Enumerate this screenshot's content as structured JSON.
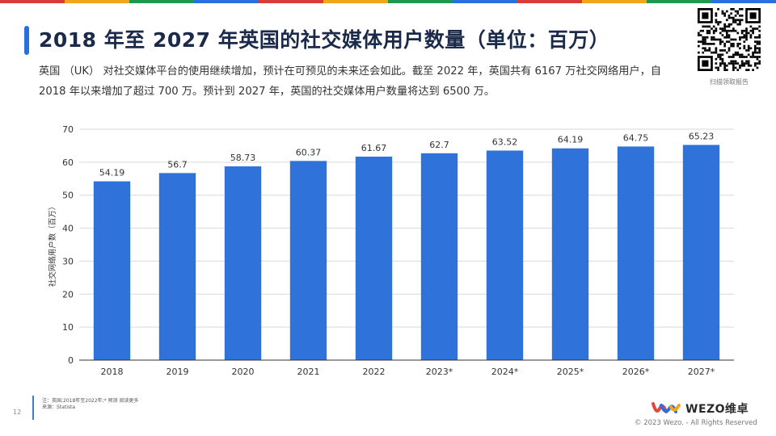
{
  "theme": {
    "bar_color": "#2f72d9",
    "title_accent": "#2a6fe0",
    "top_stripe": [
      "#d93b3b",
      "#f2a51b",
      "#1f9a4c",
      "#2a6fe0",
      "#d93b3b",
      "#f2a51b",
      "#1f9a4c",
      "#2a6fe0",
      "#d93b3b",
      "#f2a51b",
      "#1f9a4c",
      "#2a6fe0"
    ]
  },
  "title": "2018 年至 2027 年英国的社交媒体用户数量（单位：百万）",
  "description": "英国 （UK） 对社交媒体平台的使用继续增加，预计在可预见的未来还会如此。截至 2022 年，英国共有 6167 万社交网络用户，自 2018 年以来增加了超过 700 万。预计到 2027 年，英国的社交媒体用户数量将达到 6500 万。",
  "qr_caption": "扫描领取报告",
  "chart_data": {
    "type": "bar",
    "categories": [
      "2018",
      "2019",
      "2020",
      "2021",
      "2022",
      "2023*",
      "2024*",
      "2025*",
      "2026*",
      "2027*"
    ],
    "values": [
      54.19,
      56.7,
      58.73,
      60.37,
      61.67,
      62.7,
      63.52,
      64.19,
      64.75,
      65.23
    ],
    "value_labels": [
      "54.19",
      "56.7",
      "58.73",
      "60.37",
      "61.67",
      "62.7",
      "63.52",
      "64.19",
      "64.75",
      "65.23"
    ],
    "ylabel": "社交网络用户数（百万）",
    "ylim": [
      0,
      70
    ],
    "yticks": [
      0,
      10,
      20,
      30,
      40,
      50,
      60,
      70
    ],
    "grid": true
  },
  "footnote": {
    "note": "注：英国;2018年至2022年;* 预测 阅读更多",
    "source": "来源：Statista"
  },
  "page_number": "12",
  "brand": {
    "name": "WEZO维卓"
  },
  "copyright": "© 2023 Wezo. - All Rights Reserved"
}
